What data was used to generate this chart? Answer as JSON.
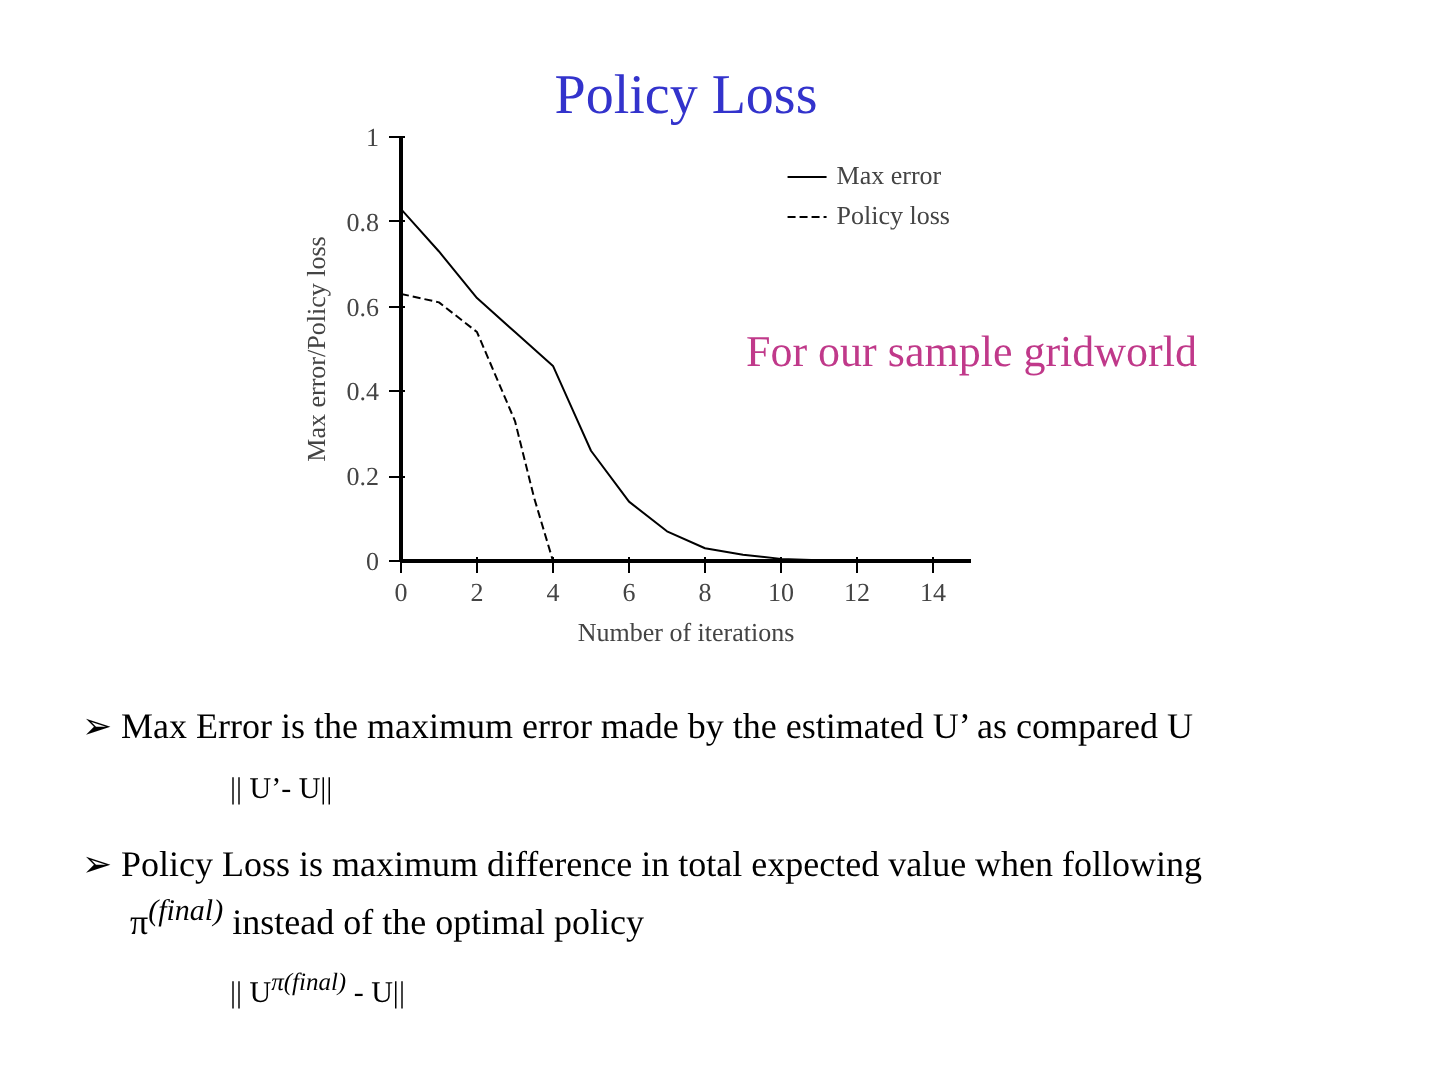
{
  "chart_data": {
    "type": "line",
    "title": "Policy Loss",
    "xlabel": "Number of iterations",
    "ylabel": "Max error/Policy loss",
    "xlim": [
      0,
      15
    ],
    "ylim": [
      0,
      1
    ],
    "xticks": [
      0,
      2,
      4,
      6,
      8,
      10,
      12,
      14
    ],
    "yticks": [
      0,
      0.2,
      0.4,
      0.6,
      0.8,
      1
    ],
    "grid": false,
    "legend": "top right",
    "marker": "none",
    "series": [
      {
        "name": "Max error",
        "color": "#000000",
        "line_style": "solid",
        "x": [
          0,
          1,
          2,
          3,
          3.5,
          4,
          4.5,
          5,
          6,
          7,
          8,
          9,
          10,
          11,
          12,
          15
        ],
        "values": [
          0.83,
          0.73,
          0.62,
          0.54,
          0.5,
          0.46,
          0.36,
          0.26,
          0.14,
          0.07,
          0.03,
          0.015,
          0.005,
          0.002,
          0,
          0
        ]
      },
      {
        "name": "Policy loss",
        "color": "#000000",
        "line_style": "dashed",
        "x": [
          0,
          1,
          2,
          3,
          3.5,
          4
        ],
        "values": [
          0.63,
          0.61,
          0.54,
          0.33,
          0.15,
          0
        ]
      }
    ],
    "annotations": [
      "For our sample gridworld",
      "➢ Max Error is  the maximum error made by the estimated U’ as compared U",
      "|| U’- U||",
      "➢ Policy Loss is maximum difference  in total expected value when following π$^{(final)}$ instead of the optimal policy",
      "|| U$^{π(final)}$ - U||"
    ]
  }
}
